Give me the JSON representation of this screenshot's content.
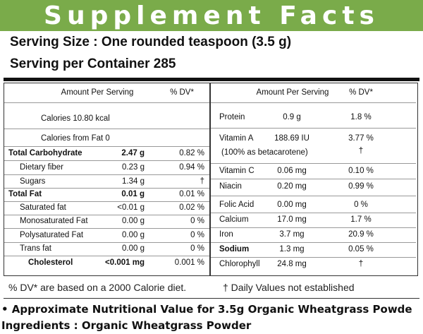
{
  "header": {
    "title": "Supplement Facts"
  },
  "serving": {
    "size": "Serving Size : One rounded teaspoon (3.5 g)",
    "per_container": "Serving per Container 285"
  },
  "left": {
    "header": {
      "amount": "Amount Per Serving",
      "dv": "% DV*"
    },
    "rows": [
      {
        "text": "Calories 10.80 kcal"
      },
      {
        "text": "Calories from Fat 0"
      },
      {
        "name": "Total Carbohydrate",
        "amount": "2.47 g",
        "dv": "0.82 %"
      },
      {
        "name": "Dietary fiber",
        "amount": "0.23 g",
        "dv": "0.94 %"
      },
      {
        "name": "Sugars",
        "amount": "1.34 g",
        "dv": "†"
      },
      {
        "name": "Total Fat",
        "amount": "0.01 g",
        "dv": "0.01 %"
      },
      {
        "name": "Saturated fat",
        "amount": "<0.01 g",
        "dv": "0.02 %"
      },
      {
        "name": "Monosaturated Fat",
        "amount": "0.00 g",
        "dv": "0 %"
      },
      {
        "name": "Polysaturated Fat",
        "amount": "0.00 g",
        "dv": "0 %"
      },
      {
        "name": "Trans fat",
        "amount": "0.00 g",
        "dv": "0 %"
      },
      {
        "name": "Cholesterol",
        "amount": "<0.001 mg",
        "dv": "0.001 %"
      }
    ]
  },
  "right": {
    "header": {
      "amount": "Amount Per Serving",
      "dv": "% DV*"
    },
    "rows": [
      {
        "name": "Protein",
        "amount": "0.9 g",
        "dv": "1.8 %"
      },
      {
        "name": "Vitamin A",
        "amount": "188.69 IU",
        "dv": "3.77 %",
        "note": "(100% as betacarotene)",
        "note_dv": "†"
      },
      {
        "name": "Vitamin C",
        "amount": "0.06 mg",
        "dv": "0.10 %"
      },
      {
        "name": "Niacin",
        "amount": "0.20 mg",
        "dv": "0.99 %"
      },
      {
        "name": "Folic Acid",
        "amount": "0.00 mg",
        "dv": "0 %"
      },
      {
        "name": "Calcium",
        "amount": "17.0 mg",
        "dv": "1.7 %"
      },
      {
        "name": "Iron",
        "amount": "3.7 mg",
        "dv": "20.9 %"
      },
      {
        "name": "Sodium",
        "amount": "1.3 mg",
        "dv": "0.05 %"
      },
      {
        "name": "Chlorophyll",
        "amount": "24.8 mg",
        "dv": "†"
      }
    ]
  },
  "footer": {
    "dv_note": "% DV* are based on a 2000 Calorie diet.",
    "dagger_note": "† Daily Values not established"
  },
  "notes": {
    "approx": "• Approximate Nutritional Value for 3.5g Organic Wheatgrass Powde",
    "ingredients": "Ingredients : Organic Wheatgrass Powder"
  }
}
